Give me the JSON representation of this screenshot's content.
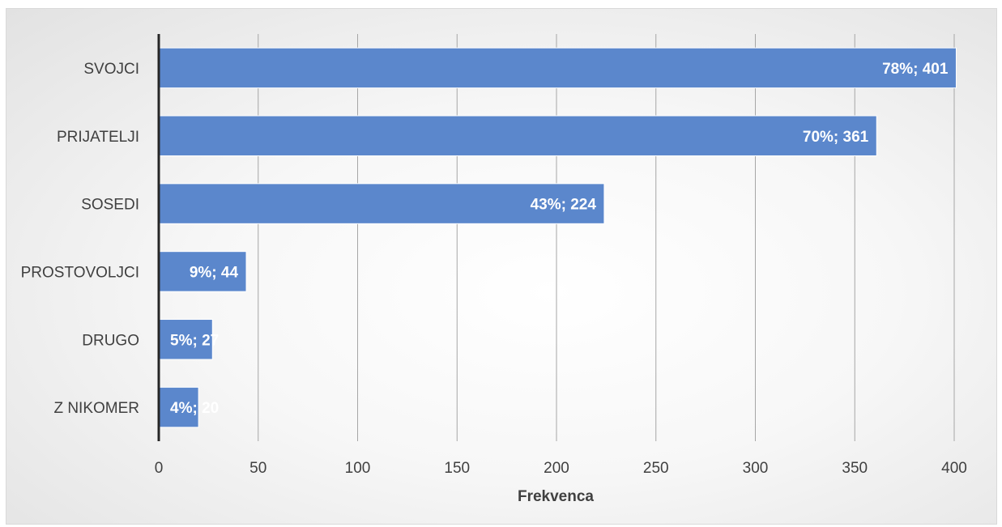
{
  "chart_data": {
    "type": "bar",
    "orientation": "horizontal",
    "categories": [
      "SVOJCI",
      "PRIJATELJI",
      "SOSEDI",
      "PROSTOVOLJCI",
      "DRUGO",
      "Z NIKOMER"
    ],
    "values": [
      401,
      361,
      224,
      44,
      27,
      20
    ],
    "data_labels": [
      "78%; 401",
      "70%; 361",
      "43%; 224",
      "9%; 44",
      "5%; 27",
      "4%; 20"
    ],
    "xlabel": "Frekvenca",
    "ylabel": "",
    "xlim": [
      0,
      400
    ],
    "xticks": [
      0,
      50,
      100,
      150,
      200,
      250,
      300,
      350,
      400
    ],
    "grid": "vertical",
    "legend": "none",
    "bar_color": "#5b87cc",
    "gridline_color": "#a6a6a6",
    "axis_line_color": "#262626"
  }
}
